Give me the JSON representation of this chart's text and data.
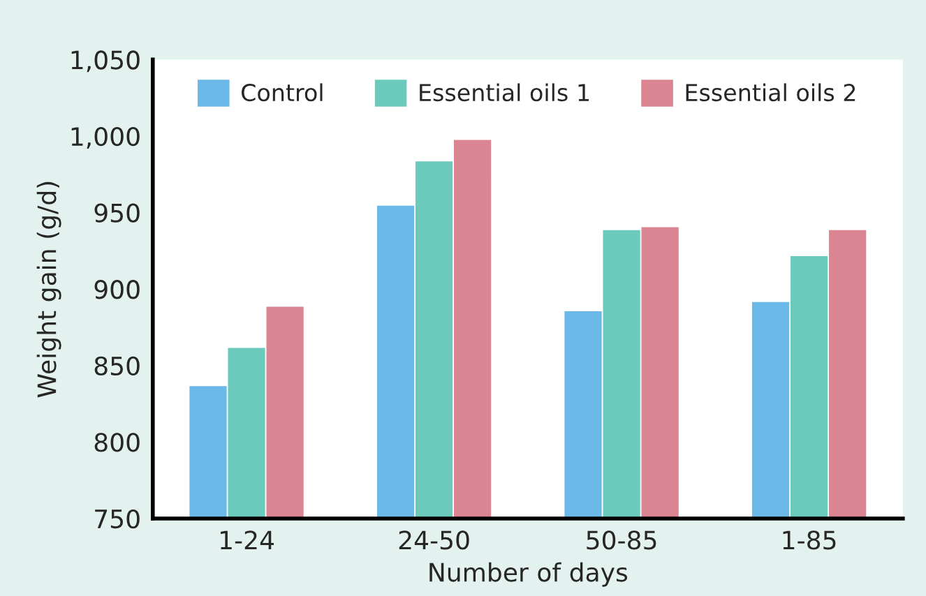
{
  "chart_data": {
    "type": "bar",
    "xlabel": "Number of days",
    "ylabel": "Weight gain (g/d)",
    "categories": [
      "1-24",
      "24-50",
      "50-85",
      "1-85"
    ],
    "series": [
      {
        "name": "Control",
        "color": "#6bb9e8",
        "values": [
          836,
          954,
          885,
          891
        ]
      },
      {
        "name": "Essential oils 1",
        "color": "#6ccabd",
        "values": [
          861,
          983,
          938,
          921
        ]
      },
      {
        "name": "Essential oils 2",
        "color": "#dc8592",
        "values": [
          888,
          997,
          940,
          938
        ]
      }
    ],
    "ylim": [
      750,
      1050
    ],
    "yticks": [
      {
        "value": 750,
        "label": "750"
      },
      {
        "value": 800,
        "label": "800"
      },
      {
        "value": 850,
        "label": "850"
      },
      {
        "value": 900,
        "label": "900"
      },
      {
        "value": 950,
        "label": "950"
      },
      {
        "value": 1000,
        "label": "1,000"
      },
      {
        "value": 1050,
        "label": "1,050"
      }
    ],
    "grid": false,
    "legend": "top"
  }
}
